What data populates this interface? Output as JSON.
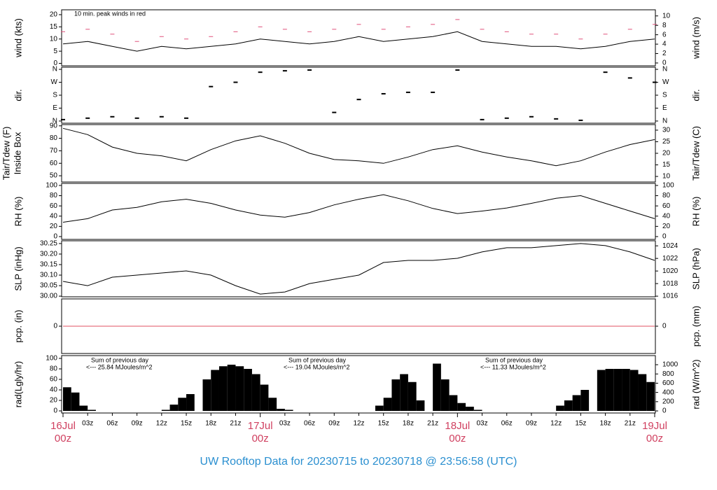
{
  "title": "UW Rooftop Data for 20230715  to  20230718 @ 23:56:58  (UTC)",
  "x_axis": {
    "xlim": [
      0,
      72
    ],
    "xticks": [
      {
        "value": 3,
        "label": "03z"
      },
      {
        "value": 6,
        "label": "06z"
      },
      {
        "value": 9,
        "label": "09z"
      },
      {
        "value": 12,
        "label": "12z"
      },
      {
        "value": 15,
        "label": "15z"
      },
      {
        "value": 18,
        "label": "18z"
      },
      {
        "value": 21,
        "label": "21z"
      },
      {
        "value": 27,
        "label": "03z"
      },
      {
        "value": 30,
        "label": "06z"
      },
      {
        "value": 33,
        "label": "09z"
      },
      {
        "value": 36,
        "label": "12z"
      },
      {
        "value": 39,
        "label": "15z"
      },
      {
        "value": 42,
        "label": "18z"
      },
      {
        "value": 45,
        "label": "21z"
      },
      {
        "value": 51,
        "label": "03z"
      },
      {
        "value": 54,
        "label": "06z"
      },
      {
        "value": 57,
        "label": "09z"
      },
      {
        "value": 60,
        "label": "12z"
      },
      {
        "value": 63,
        "label": "15z"
      },
      {
        "value": 66,
        "label": "18z"
      },
      {
        "value": 69,
        "label": "21z"
      }
    ],
    "day_ticks": [
      {
        "value": 0,
        "label": "16Jul",
        "hour": "00z"
      },
      {
        "value": 24,
        "label": "17Jul",
        "hour": "00z"
      },
      {
        "value": 48,
        "label": "18Jul",
        "hour": "00z"
      },
      {
        "value": 72,
        "label": "19Jul",
        "hour": "00z"
      }
    ]
  },
  "chart_data": [
    {
      "type": "line",
      "ylabel": "wind (kts)",
      "y2label": "wind (m/s)",
      "annotation": "10 min. peak winds in red",
      "ylim": [
        -1,
        22
      ],
      "yticks": [
        0,
        5,
        10,
        15,
        20
      ],
      "y2lim": [
        -0.6,
        11.3
      ],
      "y2ticks": [
        0,
        2,
        4,
        6,
        8,
        10
      ],
      "x": [
        0,
        3,
        6,
        9,
        12,
        15,
        18,
        21,
        24,
        27,
        30,
        33,
        36,
        39,
        42,
        45,
        48,
        51,
        54,
        57,
        60,
        63,
        66,
        69,
        72
      ],
      "series": [
        {
          "name": "wind",
          "style": "line",
          "color": "#000000",
          "values": [
            8,
            9,
            7,
            5,
            7,
            6,
            7,
            8,
            10,
            9,
            8,
            9,
            11,
            9,
            10,
            11,
            13,
            9,
            8,
            7,
            7,
            6,
            7,
            9,
            10
          ]
        },
        {
          "name": "peak",
          "style": "dash",
          "color": "#e0507a",
          "values": [
            13,
            14,
            12,
            9,
            11,
            10,
            11,
            13,
            15,
            14,
            13,
            14,
            16,
            14,
            15,
            16,
            18,
            14,
            13,
            12,
            12,
            10,
            12,
            14,
            16
          ]
        }
      ]
    },
    {
      "type": "scatter",
      "ylabel": "dir.",
      "y2label": "dir.",
      "ylim": [
        -15,
        375
      ],
      "yticks": [
        {
          "value": 0,
          "label": "N"
        },
        {
          "value": 90,
          "label": "E"
        },
        {
          "value": 180,
          "label": "S"
        },
        {
          "value": 270,
          "label": "W"
        },
        {
          "value": 360,
          "label": "N"
        }
      ],
      "y2lim": [
        -15,
        375
      ],
      "y2ticks": [
        {
          "value": 0,
          "label": "N"
        },
        {
          "value": 90,
          "label": "E"
        },
        {
          "value": 180,
          "label": "S"
        },
        {
          "value": 270,
          "label": "W"
        },
        {
          "value": 360,
          "label": "N"
        }
      ],
      "x": [
        0,
        3,
        6,
        9,
        12,
        15,
        18,
        21,
        24,
        27,
        30,
        33,
        36,
        39,
        42,
        45,
        48,
        51,
        54,
        57,
        60,
        63,
        66,
        69,
        72
      ],
      "series": [
        {
          "name": "dir",
          "color": "#000000",
          "values": [
            10,
            20,
            30,
            20,
            30,
            20,
            240,
            270,
            340,
            350,
            355,
            60,
            150,
            190,
            200,
            200,
            355,
            10,
            20,
            30,
            15,
            5,
            340,
            300,
            270
          ]
        }
      ]
    },
    {
      "type": "line",
      "ylabel": "Tair/Tdew (F)",
      "ylabel2": "Inside Box",
      "y2label": "Tair/Tdew (C)",
      "ylim": [
        45,
        91
      ],
      "yticks": [
        50,
        60,
        70,
        80,
        90
      ],
      "y2lim": [
        7.6,
        32.4
      ],
      "y2ticks": [
        10,
        15,
        20,
        25,
        30
      ],
      "x": [
        0,
        3,
        6,
        9,
        12,
        15,
        18,
        21,
        24,
        27,
        30,
        33,
        36,
        39,
        42,
        45,
        48,
        51,
        54,
        57,
        60,
        63,
        66,
        69,
        72
      ],
      "series": [
        {
          "name": "Tair",
          "style": "line",
          "color": "#000000",
          "values": [
            88,
            83,
            73,
            68,
            66,
            62,
            71,
            78,
            82,
            76,
            68,
            63,
            62,
            60,
            65,
            71,
            74,
            69,
            65,
            62,
            58,
            62,
            69,
            75,
            79
          ]
        }
      ]
    },
    {
      "type": "line",
      "ylabel": "RH (%)",
      "y2label": "RH (%)",
      "ylim": [
        -5.5,
        104
      ],
      "yticks": [
        0,
        20,
        40,
        60,
        80,
        100
      ],
      "y2lim": [
        -5.5,
        104
      ],
      "y2ticks": [
        0,
        20,
        40,
        60,
        80,
        100
      ],
      "x": [
        0,
        3,
        6,
        9,
        12,
        15,
        18,
        21,
        24,
        27,
        30,
        33,
        36,
        39,
        42,
        45,
        48,
        51,
        54,
        57,
        60,
        63,
        66,
        69,
        72
      ],
      "series": [
        {
          "name": "RH",
          "style": "line",
          "color": "#000000",
          "values": [
            28,
            35,
            52,
            57,
            68,
            73,
            65,
            52,
            42,
            38,
            47,
            62,
            73,
            82,
            70,
            55,
            45,
            50,
            56,
            65,
            75,
            80,
            65,
            50,
            35
          ]
        }
      ]
    },
    {
      "type": "line",
      "ylabel": "SLP (inHg)",
      "y2label": "SLP (hPa)",
      "ylim": [
        29.997,
        30.263
      ],
      "yticks": [
        {
          "value": 30.0,
          "label": "30.00"
        },
        {
          "value": 30.05,
          "label": "30.05"
        },
        {
          "value": 30.1,
          "label": "30.10"
        },
        {
          "value": 30.15,
          "label": "30.15"
        },
        {
          "value": 30.2,
          "label": "30.20"
        },
        {
          "value": 30.25,
          "label": "30.25"
        }
      ],
      "y2lim": [
        1015.9,
        1024.8
      ],
      "y2ticks": [
        1016,
        1018,
        1020,
        1022,
        1024
      ],
      "x": [
        0,
        3,
        6,
        9,
        12,
        15,
        18,
        21,
        24,
        27,
        30,
        33,
        36,
        39,
        42,
        45,
        48,
        51,
        54,
        57,
        60,
        63,
        66,
        69,
        72
      ],
      "series": [
        {
          "name": "SLP",
          "style": "line",
          "color": "#000000",
          "values": [
            30.07,
            30.05,
            30.09,
            30.1,
            30.11,
            30.12,
            30.1,
            30.05,
            30.01,
            30.02,
            30.06,
            30.08,
            30.1,
            30.16,
            30.17,
            30.17,
            30.18,
            30.21,
            30.23,
            30.23,
            30.24,
            30.25,
            30.24,
            30.21,
            30.17
          ]
        }
      ]
    },
    {
      "type": "line",
      "ylabel": "pcp. (in)",
      "y2label": "pcp. (mm)",
      "ylim": [
        -1,
        1
      ],
      "yticks": [
        0
      ],
      "y2lim": [
        -1,
        1
      ],
      "y2ticks": [
        0
      ],
      "x": [
        0,
        72
      ],
      "series": [
        {
          "name": "pcp",
          "style": "line",
          "color": "#e05060",
          "values": [
            0,
            0
          ]
        }
      ]
    },
    {
      "type": "bar",
      "ylabel": "rad(Lgly/hr)",
      "y2label": "rad (W/m^2)",
      "notes": [
        "Sum of previous day",
        "<--- 25.84 MJoules/m^2",
        "Sum of previous day",
        "<--- 19.04 MJoules/m^2",
        "Sum of previous day",
        "<--- 11.33 MJoules/m^2"
      ],
      "ylim": [
        -4,
        105.3
      ],
      "yticks": [
        0,
        20,
        40,
        60,
        80,
        100
      ],
      "y2lim": [
        -45,
        1197
      ],
      "y2ticks": [
        0,
        200,
        400,
        600,
        800,
        1000
      ],
      "x": [
        0,
        1,
        2,
        3,
        4,
        5,
        6,
        7,
        8,
        9,
        10,
        11,
        12,
        13,
        14,
        15,
        16,
        17,
        18,
        19,
        20,
        21,
        22,
        23,
        24,
        25,
        26,
        27,
        28,
        29,
        30,
        31,
        32,
        33,
        34,
        35,
        36,
        37,
        38,
        39,
        40,
        41,
        42,
        43,
        44,
        45,
        46,
        47,
        48,
        49,
        50,
        51,
        52,
        53,
        54,
        55,
        56,
        57,
        58,
        59,
        60,
        61,
        62,
        63,
        64,
        65,
        66,
        67,
        68,
        69,
        70,
        71
      ],
      "series": [
        {
          "name": "rad",
          "color": "#000000",
          "values": [
            45,
            35,
            10,
            2,
            0,
            0,
            0,
            0,
            0,
            0,
            0,
            0,
            2,
            12,
            25,
            32,
            0,
            60,
            78,
            85,
            88,
            85,
            80,
            70,
            50,
            25,
            4,
            2,
            0,
            0,
            0,
            0,
            0,
            0,
            0,
            0,
            0,
            0,
            10,
            25,
            60,
            70,
            55,
            20,
            0,
            90,
            60,
            30,
            15,
            8,
            2,
            0,
            0,
            0,
            0,
            0,
            0,
            0,
            0,
            0,
            10,
            20,
            30,
            40,
            0,
            78,
            80,
            80,
            80,
            78,
            70,
            55
          ]
        }
      ]
    }
  ]
}
